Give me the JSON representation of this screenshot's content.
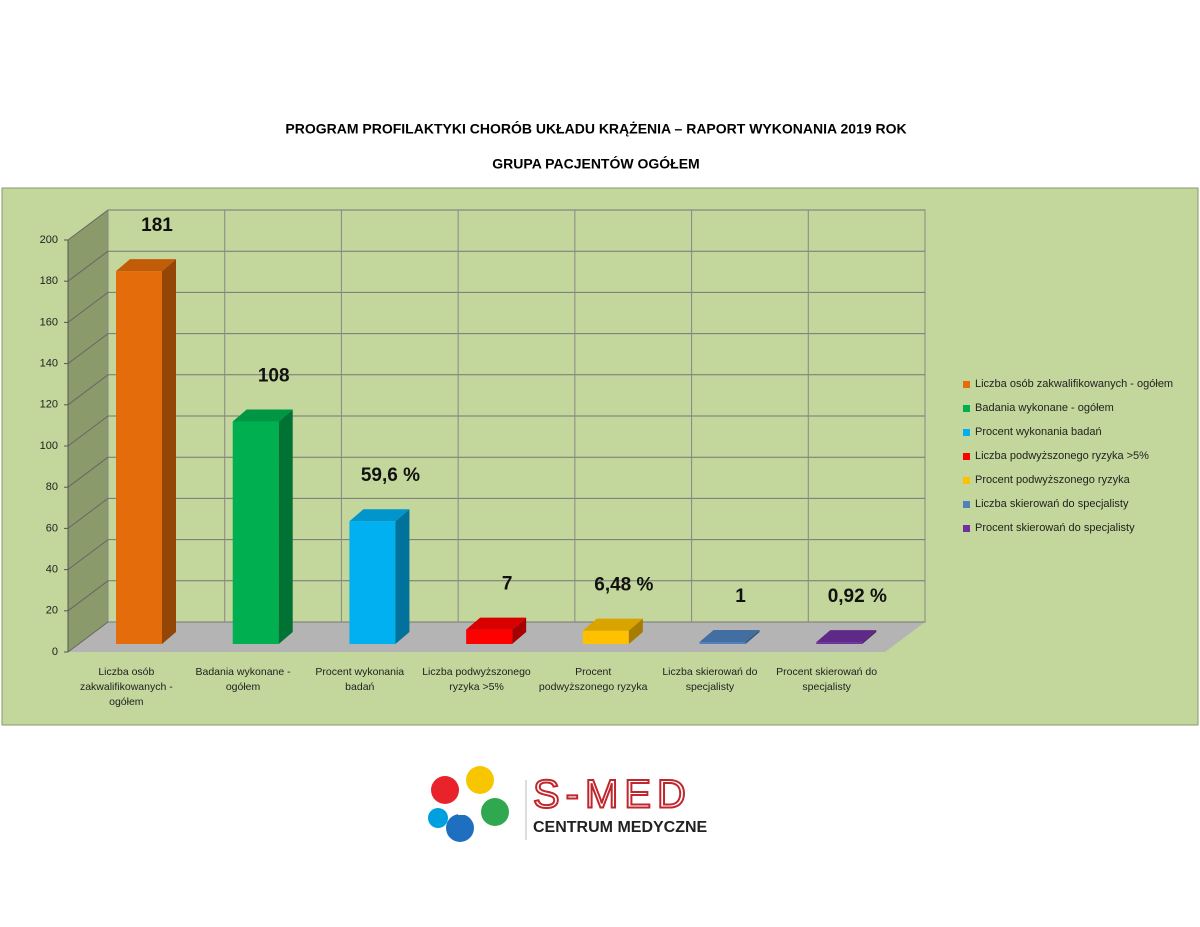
{
  "chart_data": {
    "type": "bar3d",
    "title": "PROGRAM PROFILAKTYKI CHORÓB UKŁADU KRĄŻENIA – RAPORT WYKONANIA 2019 ROK",
    "subtitle": "GRUPA  PACJENTÓW OGÓŁEM",
    "categories": [
      "Liczba osób zakwalifikowanych - ogółem",
      "Badania wykonane - ogółem",
      "Procent wykonania badań",
      "Liczba podwyższonego ryzyka >5%",
      "Procent podwyższonego ryzyka",
      "Liczba skierowań do specjalisty",
      "Procent skierowań do specjalisty"
    ],
    "values": [
      181,
      108,
      59.6,
      7,
      6.48,
      1,
      0.92
    ],
    "value_labels": [
      "181",
      "108",
      "59,6 %",
      "7",
      "6,48 %",
      "1",
      "0,92 %"
    ],
    "colors": [
      "#e46c0a",
      "#00b050",
      "#00b0f0",
      "#ff0000",
      "#ffc000",
      "#4f81bd",
      "#7030a0"
    ],
    "ylim": [
      0,
      200
    ],
    "yticks": [
      0,
      20,
      40,
      60,
      80,
      100,
      120,
      140,
      160,
      180,
      200
    ],
    "grid": true,
    "legend": "right"
  },
  "logo": {
    "name": "S-MED",
    "tagline": "CENTRUM MEDYCZNE"
  }
}
